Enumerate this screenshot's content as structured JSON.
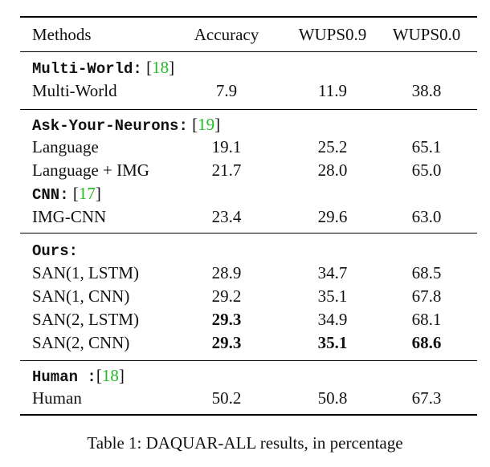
{
  "table": {
    "headers": [
      "Methods",
      "Accuracy",
      "WUPS0.9",
      "WUPS0.0"
    ],
    "groups": [
      {
        "title": "Multi-World",
        "title_suffix": ":",
        "cite": "18",
        "rows": [
          {
            "method": "Multi-World",
            "accuracy": "7.9",
            "wups09": "11.9",
            "wups00": "38.8"
          }
        ]
      },
      {
        "title": "Ask-Your-Neurons",
        "title_suffix": ":",
        "cite": "19",
        "rows": [
          {
            "method": "Language",
            "accuracy": "19.1",
            "wups09": "25.2",
            "wups00": "65.1"
          },
          {
            "method": "Language + IMG",
            "accuracy": "21.7",
            "wups09": "28.0",
            "wups00": "65.0"
          }
        ],
        "subgroup": {
          "title": "CNN",
          "title_suffix": ":",
          "cite": "17",
          "rows": [
            {
              "method": "IMG-CNN",
              "accuracy": "23.4",
              "wups09": "29.6",
              "wups00": "63.0"
            }
          ]
        }
      },
      {
        "title": "Ours",
        "title_suffix": ":",
        "rows": [
          {
            "method": "SAN(1, LSTM)",
            "accuracy": "28.9",
            "wups09": "34.7",
            "wups00": "68.5"
          },
          {
            "method": "SAN(1, CNN)",
            "accuracy": "29.2",
            "wups09": "35.1",
            "wups00": "67.8"
          },
          {
            "method": "SAN(2, LSTM)",
            "accuracy": "29.3",
            "wups09": "34.9",
            "wups00": "68.1"
          },
          {
            "method": "SAN(2, CNN)",
            "accuracy": "29.3",
            "wups09": "35.1",
            "wups00": "68.6"
          }
        ]
      },
      {
        "title": "Human",
        "title_suffix": " :",
        "cite": "18",
        "rows": [
          {
            "method": "Human",
            "accuracy": "50.2",
            "wups09": "50.8",
            "wups00": "67.3"
          }
        ]
      }
    ]
  },
  "caption": "Table 1: DAQUAR-ALL results, in percentage"
}
